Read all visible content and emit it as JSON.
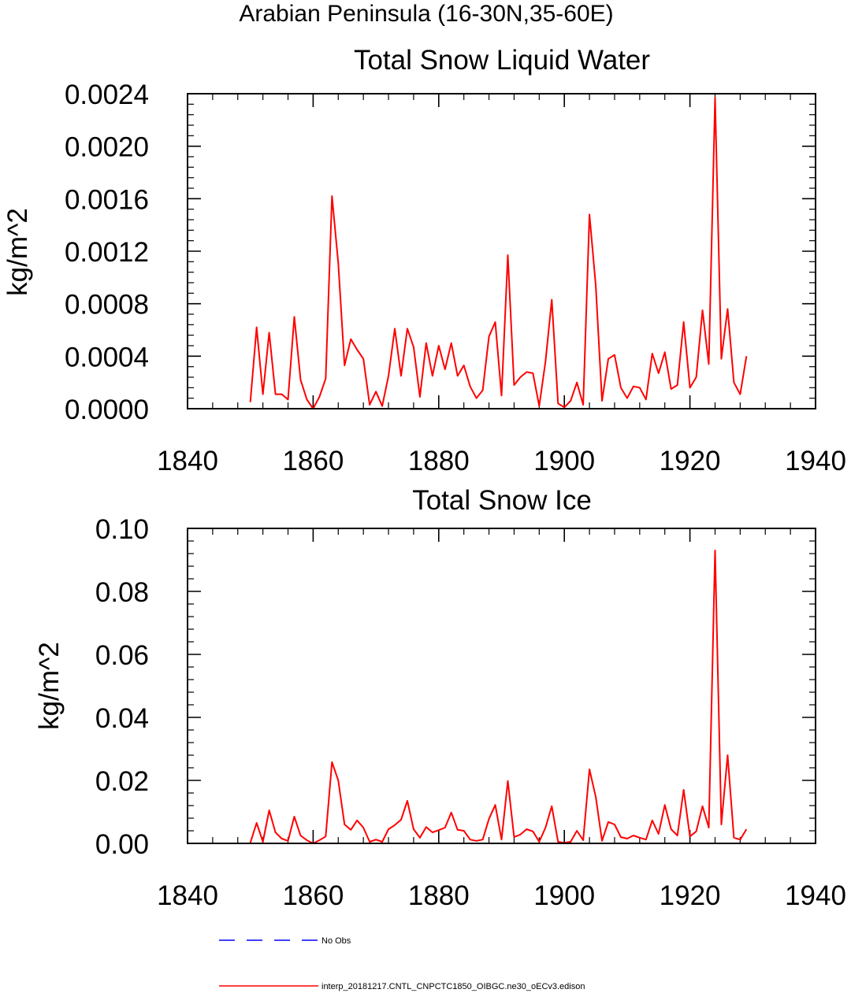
{
  "figure": {
    "title": "Arabian Peninsula (16-30N,35-60E)"
  },
  "legend": [
    {
      "label": "No Obs",
      "color": "#0000ff",
      "style": "dashed"
    },
    {
      "label": "interp_20181217.CNTL_CNPCTC1850_OIBGC.ne30_oECv3.edison",
      "color": "#ff0000",
      "style": "solid"
    }
  ],
  "chart_data": [
    {
      "type": "line",
      "title": "Total Snow Liquid Water",
      "xlabel": "",
      "ylabel": "kg/m^2",
      "xlim": [
        1840,
        1940
      ],
      "ylim": [
        0,
        0.0024
      ],
      "xticks": [
        "1840",
        "1860",
        "1880",
        "1900",
        "1920",
        "1940"
      ],
      "yticks": [
        "0.0000",
        "0.0004",
        "0.0008",
        "0.0012",
        "0.0016",
        "0.0020",
        "0.0024"
      ],
      "grid": false,
      "series": [
        {
          "color": "#ff0000",
          "x": [
            1850,
            1851,
            1852,
            1853,
            1854,
            1855,
            1856,
            1857,
            1858,
            1859,
            1860,
            1861,
            1862,
            1863,
            1864,
            1865,
            1866,
            1867,
            1868,
            1869,
            1870,
            1871,
            1872,
            1873,
            1874,
            1875,
            1876,
            1877,
            1878,
            1879,
            1880,
            1881,
            1882,
            1883,
            1884,
            1885,
            1886,
            1887,
            1888,
            1889,
            1890,
            1891,
            1892,
            1893,
            1894,
            1895,
            1896,
            1897,
            1898,
            1899,
            1900,
            1901,
            1902,
            1903,
            1904,
            1905,
            1906,
            1907,
            1908,
            1909,
            1910,
            1911,
            1912,
            1913,
            1914,
            1915,
            1916,
            1917,
            1918,
            1919,
            1920,
            1921,
            1922,
            1923,
            1924,
            1925,
            1926,
            1927,
            1928,
            1929
          ],
          "values": [
            5e-05,
            0.00062,
            0.00011,
            0.00058,
            0.00011,
            0.00011,
            7e-05,
            0.0007,
            0.00022,
            7e-05,
            0.0,
            9e-05,
            0.00023,
            0.00162,
            0.00111,
            0.00033,
            0.00053,
            0.00045,
            0.00038,
            3e-05,
            0.00013,
            2e-05,
            0.00025,
            0.00061,
            0.00025,
            0.00061,
            0.00047,
            9e-05,
            0.0005,
            0.00025,
            0.00048,
            0.0003,
            0.0005,
            0.00025,
            0.00033,
            0.00017,
            8e-05,
            0.00014,
            0.00055,
            0.00066,
            0.0001,
            0.00117,
            0.00018,
            0.00024,
            0.00028,
            0.00027,
            2e-05,
            0.00036,
            0.00083,
            4e-05,
            1e-05,
            6e-05,
            0.0002,
            3e-05,
            0.00148,
            0.00094,
            6e-05,
            0.00038,
            0.00041,
            0.00016,
            8e-05,
            0.00017,
            0.00016,
            7e-05,
            0.00042,
            0.00027,
            0.00043,
            0.00015,
            0.00018,
            0.00066,
            0.00016,
            0.00024,
            0.00075,
            0.00034,
            0.00237,
            0.00038,
            0.00076,
            0.0002,
            0.00011,
            0.0004
          ]
        }
      ]
    },
    {
      "type": "line",
      "title": "Total Snow Ice",
      "xlabel": "",
      "ylabel": "kg/m^2",
      "xlim": [
        1840,
        1940
      ],
      "ylim": [
        0,
        0.1
      ],
      "xticks": [
        "1840",
        "1860",
        "1880",
        "1900",
        "1920",
        "1940"
      ],
      "yticks": [
        "0.00",
        "0.02",
        "0.04",
        "0.06",
        "0.08",
        "0.10"
      ],
      "grid": false,
      "series": [
        {
          "color": "#ff0000",
          "x": [
            1850,
            1851,
            1852,
            1853,
            1854,
            1855,
            1856,
            1857,
            1858,
            1859,
            1860,
            1861,
            1862,
            1863,
            1864,
            1865,
            1866,
            1867,
            1868,
            1869,
            1870,
            1871,
            1872,
            1873,
            1874,
            1875,
            1876,
            1877,
            1878,
            1879,
            1880,
            1881,
            1882,
            1883,
            1884,
            1885,
            1886,
            1887,
            1888,
            1889,
            1890,
            1891,
            1892,
            1893,
            1894,
            1895,
            1896,
            1897,
            1898,
            1899,
            1900,
            1901,
            1902,
            1903,
            1904,
            1905,
            1906,
            1907,
            1908,
            1909,
            1910,
            1911,
            1912,
            1913,
            1914,
            1915,
            1916,
            1917,
            1918,
            1919,
            1920,
            1921,
            1922,
            1923,
            1924,
            1925,
            1926,
            1927,
            1928,
            1929
          ],
          "values": [
            0.0002,
            0.0065,
            0.0005,
            0.0105,
            0.0035,
            0.0015,
            0.0008,
            0.0085,
            0.0025,
            0.001,
            0.0,
            0.001,
            0.0022,
            0.0258,
            0.02,
            0.006,
            0.0043,
            0.0073,
            0.005,
            0.0005,
            0.0012,
            0.0005,
            0.0045,
            0.0058,
            0.0075,
            0.0135,
            0.0045,
            0.0018,
            0.0052,
            0.0035,
            0.0042,
            0.005,
            0.0098,
            0.0043,
            0.004,
            0.0012,
            0.0008,
            0.0012,
            0.0078,
            0.0122,
            0.0012,
            0.0198,
            0.002,
            0.0028,
            0.0045,
            0.0038,
            0.0005,
            0.005,
            0.0118,
            0.0005,
            0.0002,
            0.0005,
            0.004,
            0.001,
            0.0235,
            0.0148,
            0.0008,
            0.0068,
            0.006,
            0.002,
            0.0015,
            0.0025,
            0.0018,
            0.0012,
            0.0073,
            0.003,
            0.0122,
            0.0045,
            0.0025,
            0.017,
            0.0022,
            0.0038,
            0.0118,
            0.005,
            0.093,
            0.006,
            0.028,
            0.0018,
            0.0012,
            0.0045
          ]
        }
      ]
    }
  ]
}
